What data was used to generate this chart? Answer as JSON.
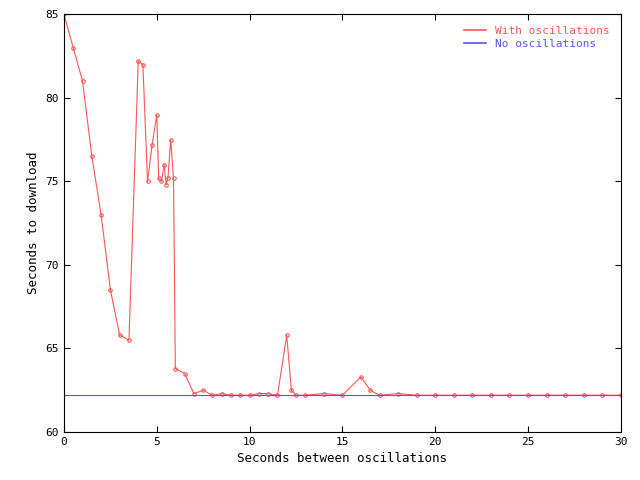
{
  "title": "",
  "xlabel": "Seconds between oscillations",
  "ylabel": "Seconds to download",
  "xlim": [
    0,
    30
  ],
  "ylim": [
    60,
    85
  ],
  "xticks": [
    0,
    5,
    10,
    15,
    20,
    25,
    30
  ],
  "yticks": [
    60,
    65,
    70,
    75,
    80,
    85
  ],
  "no_osc_value": 62.2,
  "osc_x": [
    0.0,
    0.5,
    1.0,
    1.5,
    2.0,
    2.5,
    3.0,
    3.5,
    4.0,
    4.25,
    4.5,
    4.75,
    5.0,
    5.1,
    5.25,
    5.4,
    5.5,
    5.6,
    5.75,
    5.9,
    6.0,
    6.5,
    7.0,
    7.5,
    8.0,
    8.5,
    9.0,
    9.5,
    10.0,
    10.5,
    11.0,
    11.5,
    12.0,
    12.25,
    12.5,
    13.0,
    14.0,
    15.0,
    16.0,
    16.5,
    17.0,
    18.0,
    19.0,
    20.0,
    21.0,
    22.0,
    23.0,
    24.0,
    25.0,
    26.0,
    27.0,
    28.0,
    29.0,
    30.0
  ],
  "osc_y": [
    85.0,
    83.0,
    81.0,
    76.5,
    73.0,
    68.5,
    65.8,
    65.5,
    82.2,
    82.0,
    75.0,
    77.2,
    79.0,
    75.2,
    75.0,
    76.0,
    74.8,
    75.2,
    77.5,
    75.2,
    63.8,
    63.5,
    62.3,
    62.5,
    62.2,
    62.3,
    62.2,
    62.2,
    62.2,
    62.3,
    62.3,
    62.2,
    65.8,
    62.5,
    62.2,
    62.2,
    62.3,
    62.2,
    63.3,
    62.5,
    62.2,
    62.3,
    62.2,
    62.2,
    62.2,
    62.2,
    62.2,
    62.2,
    62.2,
    62.2,
    62.2,
    62.2,
    62.2,
    62.2
  ],
  "line_color_osc": "#ff5555",
  "line_color_no_osc": "#5555ff",
  "legend_osc": "With oscillations",
  "legend_no_osc": "No oscillations",
  "bg_color": "#ffffff",
  "marker": "o",
  "marker_size": 2.5,
  "linewidth": 0.8,
  "font_size_ticks": 8,
  "font_size_labels": 9,
  "font_size_legend": 8
}
